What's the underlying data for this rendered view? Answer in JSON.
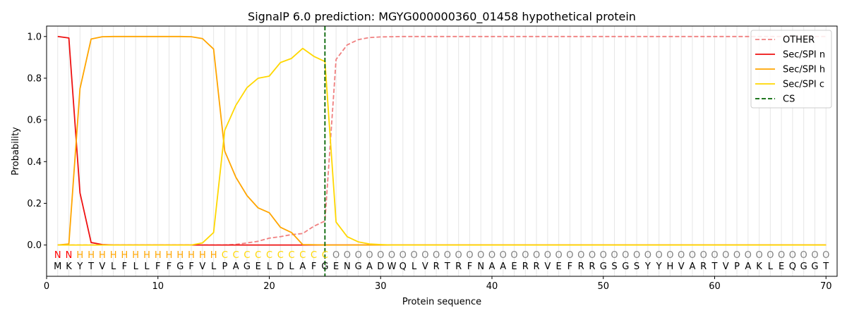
{
  "chart_data": {
    "type": "line",
    "title": "SignalP 6.0 prediction: MGYG000000360_01458 hypothetical protein",
    "xlabel": "Protein sequence",
    "ylabel": "Probability",
    "xlim": [
      0,
      71
    ],
    "ylim": [
      -0.15,
      1.05
    ],
    "xticks": [
      0,
      10,
      20,
      30,
      40,
      50,
      60,
      70
    ],
    "yticks": [
      0.0,
      0.2,
      0.4,
      0.6,
      0.8,
      1.0
    ],
    "legend_position": "top-right",
    "sequence": [
      "M",
      "K",
      "Y",
      "T",
      "V",
      "L",
      "F",
      "L",
      "L",
      "F",
      "F",
      "G",
      "F",
      "V",
      "L",
      "P",
      "A",
      "G",
      "E",
      "L",
      "D",
      "L",
      "A",
      "F",
      "G",
      "E",
      "N",
      "G",
      "A",
      "D",
      "W",
      "Q",
      "L",
      "V",
      "R",
      "T",
      "R",
      "F",
      "N",
      "A",
      "A",
      "E",
      "R",
      "R",
      "V",
      "E",
      "F",
      "R",
      "R",
      "G",
      "S",
      "G",
      "S",
      "Y",
      "Y",
      "H",
      "V",
      "A",
      "R",
      "T",
      "V",
      "P",
      "A",
      "K",
      "L",
      "E",
      "Q",
      "G",
      "G",
      "T"
    ],
    "region_labels": [
      "N",
      "N",
      "H",
      "H",
      "H",
      "H",
      "H",
      "H",
      "H",
      "H",
      "H",
      "H",
      "H",
      "H",
      "H",
      "C",
      "C",
      "C",
      "C",
      "C",
      "C",
      "C",
      "C",
      "C",
      "C",
      "O",
      "O",
      "O",
      "O",
      "O",
      "O",
      "O",
      "O",
      "O",
      "O",
      "O",
      "O",
      "O",
      "O",
      "O",
      "O",
      "O",
      "O",
      "O",
      "O",
      "O",
      "O",
      "O",
      "O",
      "O",
      "O",
      "O",
      "O",
      "O",
      "O",
      "O",
      "O",
      "O",
      "O",
      "O",
      "O",
      "O",
      "O",
      "O",
      "O",
      "O",
      "O",
      "O",
      "O",
      "O"
    ],
    "region_colors": {
      "N": "#ff0000",
      "H": "#ffa500",
      "C": "#ffd700",
      "O": "#808080"
    },
    "cs_position": 25,
    "series": [
      {
        "name": "OTHER",
        "color": "#f08080",
        "dash": true,
        "values": [
          0.0,
          0.0,
          0.0,
          0.0,
          0.0,
          0.0,
          0.0,
          0.0,
          0.0,
          0.0,
          0.0,
          0.0,
          0.0,
          0.0,
          0.0,
          0.0,
          0.003,
          0.01,
          0.018,
          0.033,
          0.04,
          0.05,
          0.055,
          0.09,
          0.115,
          0.89,
          0.96,
          0.985,
          0.995,
          0.998,
          0.999,
          1.0,
          1.0,
          1.0,
          1.0,
          1.0,
          1.0,
          1.0,
          1.0,
          1.0,
          1.0,
          1.0,
          1.0,
          1.0,
          1.0,
          1.0,
          1.0,
          1.0,
          1.0,
          1.0,
          1.0,
          1.0,
          1.0,
          1.0,
          1.0,
          1.0,
          1.0,
          1.0,
          1.0,
          1.0,
          1.0,
          1.0,
          1.0,
          1.0,
          1.0,
          1.0,
          1.0,
          1.0,
          1.0,
          1.0
        ]
      },
      {
        "name": "Sec/SPI n",
        "color": "#ee1111",
        "dash": false,
        "values": [
          1.0,
          0.993,
          0.25,
          0.012,
          0.002,
          0.0,
          0.0,
          0.0,
          0.0,
          0.0,
          0.0,
          0.0,
          0.0,
          0.0,
          0.0,
          0.0,
          0.0,
          0.0,
          0.0,
          0.0,
          0.0,
          0.0,
          0.0,
          0.0,
          0.0,
          0.0,
          0.0,
          0.0,
          0.0,
          0.0,
          0.0,
          0.0,
          0.0,
          0.0,
          0.0,
          0.0,
          0.0,
          0.0,
          0.0,
          0.0,
          0.0,
          0.0,
          0.0,
          0.0,
          0.0,
          0.0,
          0.0,
          0.0,
          0.0,
          0.0,
          0.0,
          0.0,
          0.0,
          0.0,
          0.0,
          0.0,
          0.0,
          0.0,
          0.0,
          0.0,
          0.0,
          0.0,
          0.0,
          0.0,
          0.0,
          0.0,
          0.0,
          0.0,
          0.0,
          0.0
        ]
      },
      {
        "name": "Sec/SPI h",
        "color": "#ffa500",
        "dash": false,
        "values": [
          0.0,
          0.005,
          0.75,
          0.988,
          0.999,
          1.0,
          1.0,
          1.0,
          1.0,
          1.0,
          1.0,
          1.0,
          0.999,
          0.99,
          0.94,
          0.45,
          0.325,
          0.237,
          0.178,
          0.155,
          0.085,
          0.06,
          0.002,
          0.001,
          0.0,
          0.0,
          0.0,
          0.0,
          0.0,
          0.0,
          0.0,
          0.0,
          0.0,
          0.0,
          0.0,
          0.0,
          0.0,
          0.0,
          0.0,
          0.0,
          0.0,
          0.0,
          0.0,
          0.0,
          0.0,
          0.0,
          0.0,
          0.0,
          0.0,
          0.0,
          0.0,
          0.0,
          0.0,
          0.0,
          0.0,
          0.0,
          0.0,
          0.0,
          0.0,
          0.0,
          0.0,
          0.0,
          0.0,
          0.0,
          0.0,
          0.0,
          0.0,
          0.0,
          0.0,
          0.0
        ]
      },
      {
        "name": "Sec/SPI c",
        "color": "#ffd700",
        "dash": false,
        "values": [
          0.0,
          0.0,
          0.0,
          0.0,
          0.0,
          0.0,
          0.0,
          0.0,
          0.0,
          0.0,
          0.0,
          0.0,
          0.0,
          0.01,
          0.06,
          0.55,
          0.67,
          0.755,
          0.8,
          0.81,
          0.875,
          0.895,
          0.943,
          0.905,
          0.88,
          0.11,
          0.04,
          0.015,
          0.005,
          0.002,
          0.0,
          0.0,
          0.0,
          0.0,
          0.0,
          0.0,
          0.0,
          0.0,
          0.0,
          0.0,
          0.0,
          0.0,
          0.0,
          0.0,
          0.0,
          0.0,
          0.0,
          0.0,
          0.0,
          0.0,
          0.0,
          0.0,
          0.0,
          0.0,
          0.0,
          0.0,
          0.0,
          0.0,
          0.0,
          0.0,
          0.0,
          0.0,
          0.0,
          0.0,
          0.0,
          0.0,
          0.0,
          0.0,
          0.0,
          0.0
        ]
      }
    ],
    "cs_legend": {
      "name": "CS",
      "color": "#006400"
    }
  }
}
